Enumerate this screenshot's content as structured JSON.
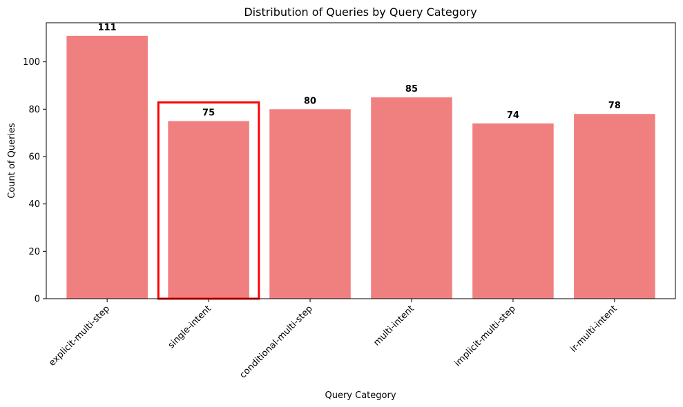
{
  "chart_data": {
    "type": "bar",
    "title": "Distribution of Queries by Query Category",
    "xlabel": "Query Category",
    "ylabel": "Count of Queries",
    "categories": [
      "explicit-multi-step",
      "single-intent",
      "conditional-multi-step",
      "multi-intent",
      "implicit-multi-step",
      "ir-multi-intent"
    ],
    "values": [
      111,
      75,
      80,
      85,
      74,
      78
    ],
    "data_labels": [
      "111",
      "75",
      "80",
      "85",
      "74",
      "78"
    ],
    "ylim": [
      0,
      116.5
    ],
    "yticks": [
      0,
      20,
      40,
      60,
      80,
      100
    ],
    "ytick_labels": [
      "0",
      "20",
      "40",
      "60",
      "80",
      "100"
    ],
    "grid": false,
    "legend": "none",
    "bar_color": "#f08080",
    "highlight": {
      "category": "single-intent",
      "color": "#ff0000"
    }
  }
}
